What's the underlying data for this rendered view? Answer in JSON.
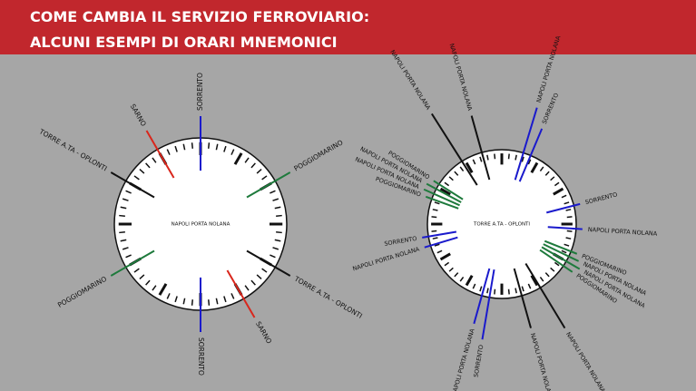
{
  "header": {
    "lines": [
      "COME CAMBIA IL SERVIZIO FERROVIARIO:",
      "ALCUNI ESEMPI DI ORARI MNEMONICI"
    ]
  },
  "clocks": [
    {
      "center": "NAPOLI PORTA NOLANA",
      "labels": [
        "SORRENTO",
        "POGGIOMARINO",
        "TORRE A.TA - OPLONTI",
        "SARNO",
        "SORRENTO",
        "POGGIOMARINO",
        "TORRE A.TA - OPLONTI",
        "SARNO"
      ]
    },
    {
      "center": "TORRE A.TA - OPLONTI",
      "labels": [
        "NAPOLI PORTA NOLANA",
        "SORRENTO",
        "SORRENTO",
        "NAPOLI PORTA NOLANA",
        "POGGIOMARINO",
        "NAPOLI PORTA NOLANA",
        "NAPOLI PORTA NOLANA",
        "POGGIOMARINO",
        "NAPOLI PORTA NOLANA",
        "NAPOLI PORTA NOLANA",
        "SORRENTO",
        "NAPOLI PORTA NOLANA",
        "NAPOLI PORTA NOLANA",
        "SORRENTO",
        "POGGIOMARINO",
        "NAPOLI PORTA NOLANA",
        "NAPOLI PORTA NOLANA",
        "POGGIOMARINO",
        "NAPOLI PORTA NOLANA",
        "NAPOLI PORTA NOLANA"
      ]
    }
  ]
}
